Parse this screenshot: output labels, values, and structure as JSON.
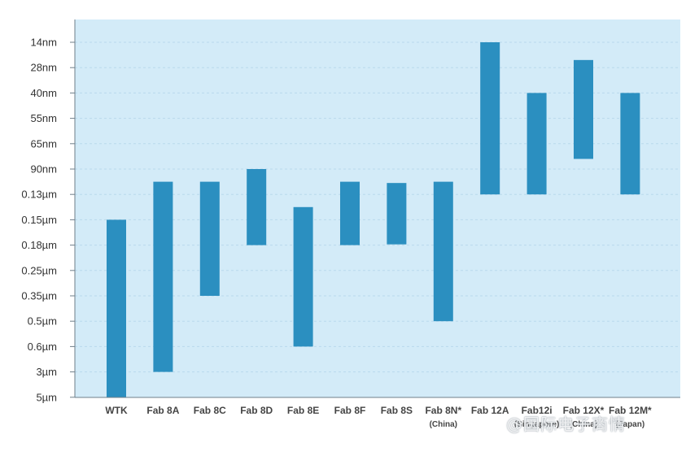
{
  "chart_data": {
    "type": "bar",
    "subtype": "floating-range",
    "title": "",
    "xlabel": "",
    "ylabel": "",
    "y_categories": [
      "14nm",
      "28nm",
      "40nm",
      "55nm",
      "65nm",
      "90nm",
      "0.13µm",
      "0.15µm",
      "0.18µm",
      "0.25µm",
      "0.35µm",
      "0.5µm",
      "0.6µm",
      "3µm",
      "5µm"
    ],
    "categories": [
      {
        "name": "WTK",
        "sub": ""
      },
      {
        "name": "Fab 8A",
        "sub": ""
      },
      {
        "name": "Fab 8C",
        "sub": ""
      },
      {
        "name": "Fab 8D",
        "sub": ""
      },
      {
        "name": "Fab 8E",
        "sub": ""
      },
      {
        "name": "Fab 8F",
        "sub": ""
      },
      {
        "name": "Fab 8S",
        "sub": ""
      },
      {
        "name": "Fab 8N*",
        "sub": "(China)"
      },
      {
        "name": "Fab 12A",
        "sub": ""
      },
      {
        "name": "Fab12i",
        "sub": "(Singapore)"
      },
      {
        "name": "Fab 12X*",
        "sub": "(China)"
      },
      {
        "name": "Fab 12M*",
        "sub": "(Japan)"
      }
    ],
    "ranges": [
      {
        "from": "0.15µm",
        "to": "5µm"
      },
      {
        "from": "90nm/0.13µm",
        "to": "3µm"
      },
      {
        "from": "90nm/0.13µm",
        "to": "0.35µm"
      },
      {
        "from": "90nm",
        "to": "0.18µm"
      },
      {
        "from": "0.13µm/0.15µm",
        "to": "0.6µm"
      },
      {
        "from": "90nm/0.13µm",
        "to": "0.18µm"
      },
      {
        "from": "90nm/0.13µm",
        "to": "0.18µm"
      },
      {
        "from": "90nm/0.13µm",
        "to": "0.5µm"
      },
      {
        "from": "14nm",
        "to": "0.13µm"
      },
      {
        "from": "40nm",
        "to": "0.13µm"
      },
      {
        "from": "28nm/40nm",
        "to": "65nm/90nm"
      },
      {
        "from": "40nm",
        "to": "0.13µm"
      }
    ],
    "range_index": [
      [
        7.0,
        14.0
      ],
      [
        5.5,
        13.0
      ],
      [
        5.5,
        10.0
      ],
      [
        5.0,
        8.0
      ],
      [
        6.5,
        12.0
      ],
      [
        5.5,
        8.0
      ],
      [
        5.55,
        7.97
      ],
      [
        5.5,
        11.0
      ],
      [
        0.0,
        6.0
      ],
      [
        2.0,
        6.0
      ],
      [
        0.7,
        4.6
      ],
      [
        2.0,
        6.0
      ]
    ],
    "grid": true,
    "bar_color": "#2b8fc0",
    "plot_background": "#d3ebf8"
  },
  "watermark": "@国际电子商情"
}
